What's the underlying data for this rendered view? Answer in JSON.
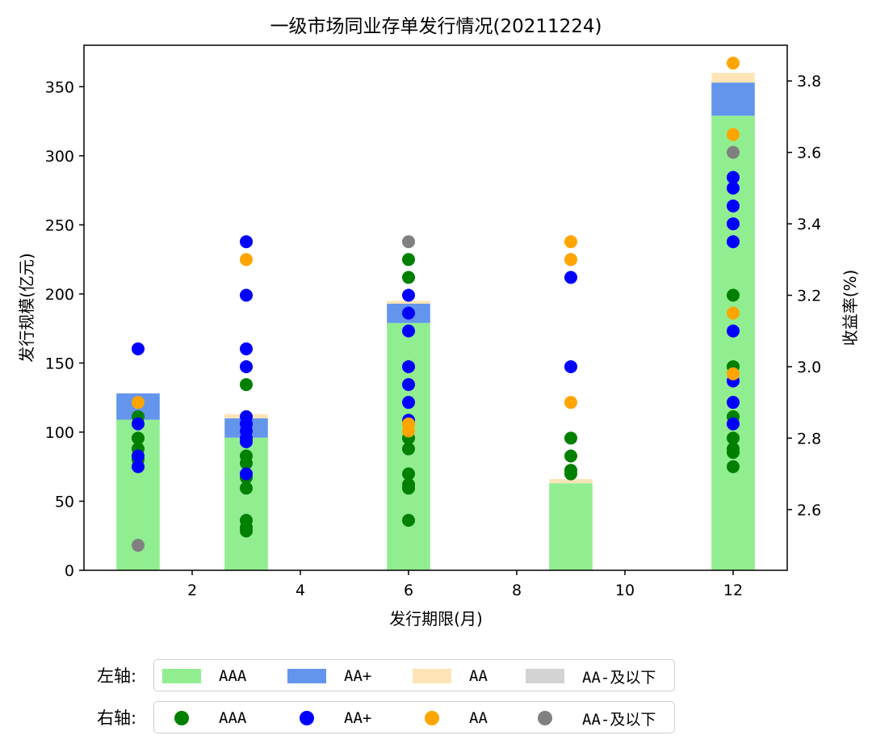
{
  "chart_data": {
    "type": "bar+scatter",
    "title": "一级市场同业存单发行情况(20211224)",
    "xlabel": "发行期限(月)",
    "ylabel_left": "发行规模(亿元)",
    "ylabel_right": "收益率(%)",
    "xlim": [
      0,
      13
    ],
    "ylim_left": [
      0,
      380
    ],
    "ylim_right": [
      2.43,
      3.9
    ],
    "xticks": [
      2,
      4,
      6,
      8,
      10,
      12
    ],
    "yticks_left": [
      0,
      50,
      100,
      150,
      200,
      250,
      300,
      350
    ],
    "yticks_right": [
      2.6,
      2.8,
      3.0,
      3.2,
      3.4,
      3.6,
      3.8
    ],
    "bar_series": [
      {
        "name": "AAA",
        "color": "#90EE90",
        "x": [
          1,
          3,
          6,
          9,
          12
        ],
        "values": [
          109,
          96,
          179,
          63,
          329
        ]
      },
      {
        "name": "AA+",
        "color": "#6495ED",
        "x": [
          1,
          3,
          6,
          9,
          12
        ],
        "values": [
          19,
          14,
          14,
          0,
          24
        ]
      },
      {
        "name": "AA",
        "color": "#FFE4B5",
        "x": [
          1,
          3,
          6,
          9,
          12
        ],
        "values": [
          0,
          3,
          2,
          3,
          7
        ]
      },
      {
        "name": "AA-及以下",
        "color": "#D3D3D3",
        "x": [
          1,
          3,
          6,
          9,
          12
        ],
        "values": [
          0,
          0,
          0,
          0,
          0
        ]
      }
    ],
    "scatter_series": [
      {
        "name": "AAA",
        "color": "#008000",
        "points": [
          [
            1,
            2.86
          ],
          [
            1,
            2.8
          ],
          [
            1,
            2.77
          ],
          [
            1,
            2.74
          ],
          [
            3,
            2.95
          ],
          [
            3,
            2.75
          ],
          [
            3,
            2.73
          ],
          [
            3,
            2.69
          ],
          [
            3,
            2.66
          ],
          [
            3,
            2.57
          ],
          [
            3,
            2.55
          ],
          [
            3,
            2.54
          ],
          [
            6,
            3.3
          ],
          [
            6,
            3.25
          ],
          [
            6,
            2.8
          ],
          [
            6,
            2.77
          ],
          [
            6,
            2.7
          ],
          [
            6,
            2.67
          ],
          [
            6,
            2.66
          ],
          [
            6,
            2.57
          ],
          [
            9,
            2.8
          ],
          [
            9,
            2.75
          ],
          [
            9,
            2.71
          ],
          [
            9,
            2.7
          ],
          [
            12,
            3.2
          ],
          [
            12,
            3.0
          ],
          [
            12,
            2.86
          ],
          [
            12,
            2.8
          ],
          [
            12,
            2.77
          ],
          [
            12,
            2.76
          ],
          [
            12,
            2.72
          ]
        ]
      },
      {
        "name": "AA+",
        "color": "#0000FF",
        "points": [
          [
            1,
            3.05
          ],
          [
            1,
            2.84
          ],
          [
            1,
            2.75
          ],
          [
            1,
            2.72
          ],
          [
            3,
            3.35
          ],
          [
            3,
            3.2
          ],
          [
            3,
            3.05
          ],
          [
            3,
            3.0
          ],
          [
            3,
            2.86
          ],
          [
            3,
            2.84
          ],
          [
            3,
            2.82
          ],
          [
            3,
            2.8
          ],
          [
            3,
            2.79
          ],
          [
            3,
            2.7
          ],
          [
            6,
            3.2
          ],
          [
            6,
            3.15
          ],
          [
            6,
            3.1
          ],
          [
            6,
            3.0
          ],
          [
            6,
            2.95
          ],
          [
            6,
            2.9
          ],
          [
            6,
            2.85
          ],
          [
            9,
            3.25
          ],
          [
            9,
            3.0
          ],
          [
            12,
            3.53
          ],
          [
            12,
            3.5
          ],
          [
            12,
            3.45
          ],
          [
            12,
            3.4
          ],
          [
            12,
            3.35
          ],
          [
            12,
            3.1
          ],
          [
            12,
            2.96
          ],
          [
            12,
            2.9
          ],
          [
            12,
            2.84
          ]
        ]
      },
      {
        "name": "AA",
        "color": "#FFA500",
        "points": [
          [
            1,
            2.9
          ],
          [
            3,
            3.3
          ],
          [
            6,
            2.84
          ],
          [
            6,
            2.82
          ],
          [
            9,
            3.35
          ],
          [
            9,
            3.3
          ],
          [
            9,
            2.9
          ],
          [
            12,
            3.85
          ],
          [
            12,
            3.65
          ],
          [
            12,
            3.15
          ],
          [
            12,
            2.98
          ]
        ]
      },
      {
        "name": "AA-及以下",
        "color": "#808080",
        "points": [
          [
            1,
            2.5
          ],
          [
            6,
            3.35
          ],
          [
            12,
            3.6
          ]
        ]
      }
    ]
  },
  "legend": {
    "left_title": "左轴:",
    "right_title": "右轴:",
    "left_items": [
      {
        "label": "AAA",
        "color": "#90EE90"
      },
      {
        "label": "AA+",
        "color": "#6495ED"
      },
      {
        "label": "AA",
        "color": "#FFE4B5"
      },
      {
        "label": "AA-及以下",
        "color": "#D3D3D3"
      }
    ],
    "right_items": [
      {
        "label": "AAA",
        "color": "#008000"
      },
      {
        "label": "AA+",
        "color": "#0000FF"
      },
      {
        "label": "AA",
        "color": "#FFA500"
      },
      {
        "label": "AA-及以下",
        "color": "#808080"
      }
    ]
  }
}
